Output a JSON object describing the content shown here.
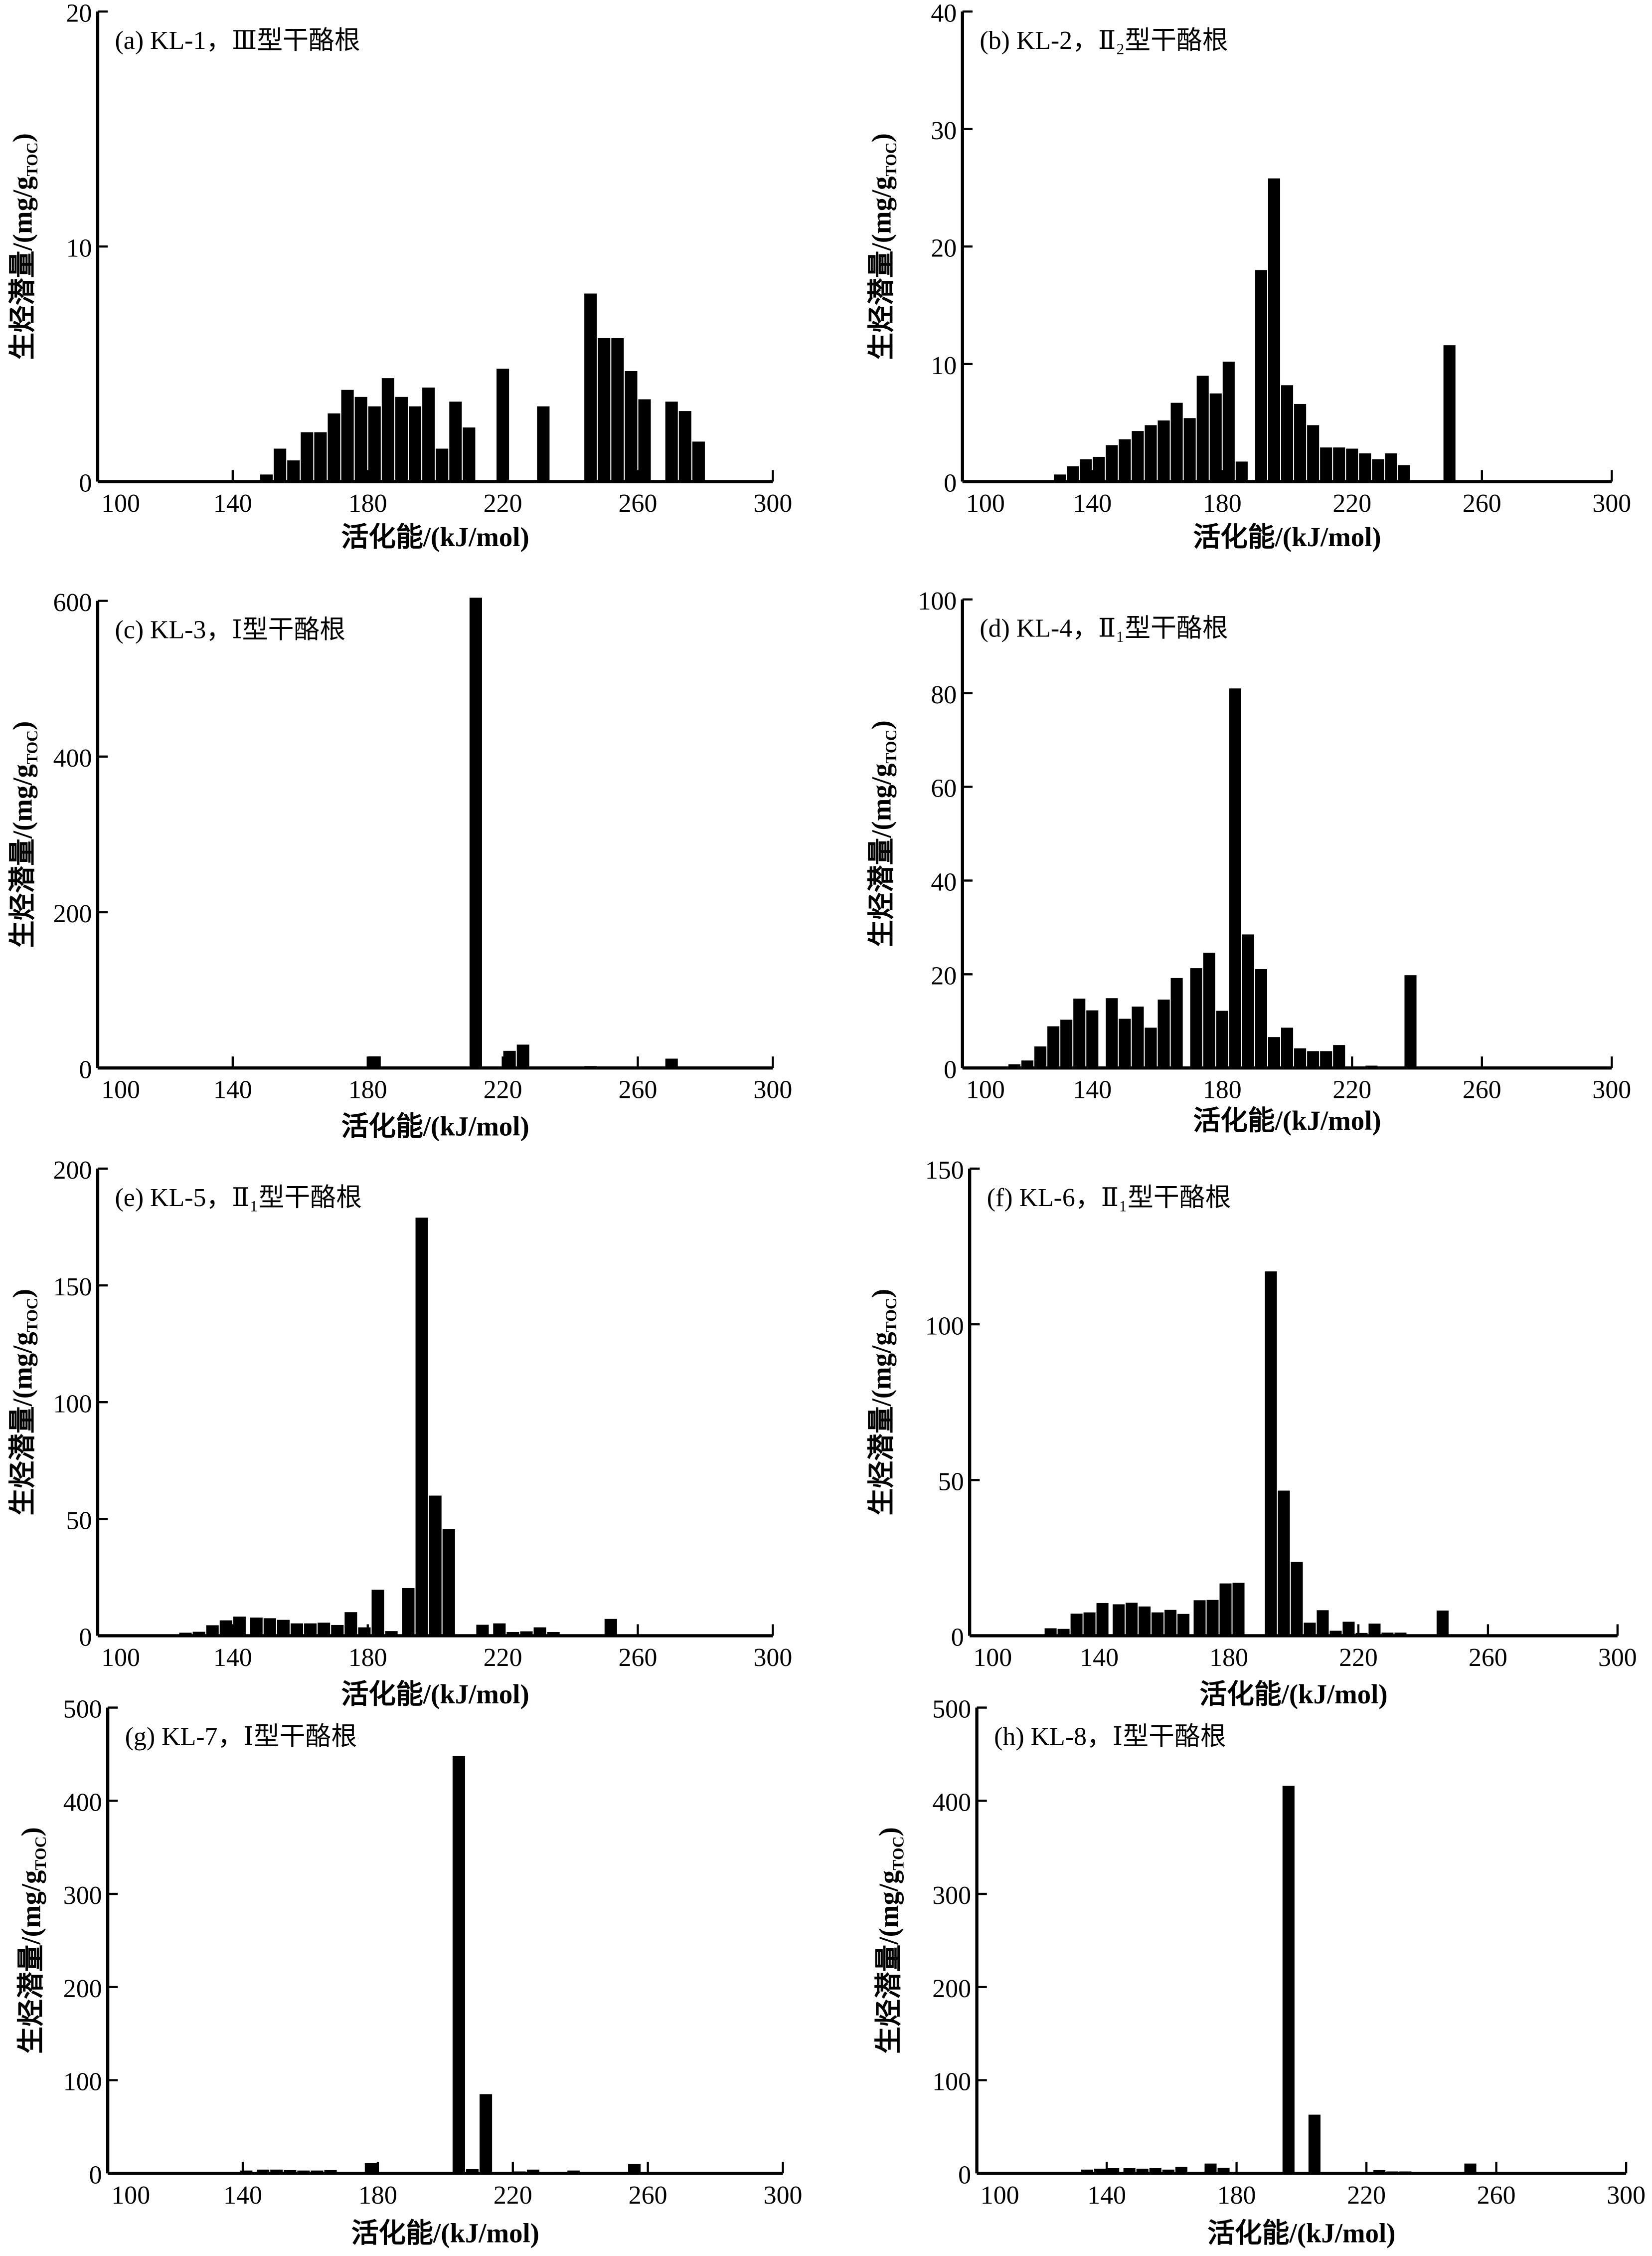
{
  "chart_data": [
    {
      "id": "a",
      "type": "bar",
      "title": "(a) KL-1，Ⅲ型干酪根",
      "xlabel": "活化能/(kJ/mol)",
      "ylabel": {
        "main": "生烃潜量/(mg/g",
        "sub": "TOC",
        "end": ")"
      },
      "xlim": [
        100,
        300
      ],
      "ylim": [
        0,
        20
      ],
      "xticks": [
        100,
        140,
        180,
        220,
        260,
        300
      ],
      "yticks": [
        0,
        10,
        20
      ],
      "x": [
        150,
        154,
        158,
        162,
        166,
        170,
        174,
        178,
        182,
        186,
        190,
        194,
        198,
        202,
        206,
        210,
        220,
        232,
        246,
        250,
        254,
        258,
        262,
        270,
        274,
        278
      ],
      "values": [
        0.3,
        1.4,
        0.9,
        2.1,
        2.1,
        2.9,
        3.9,
        3.6,
        3.2,
        4.4,
        3.6,
        3.2,
        4.0,
        1.4,
        3.4,
        2.3,
        4.8,
        3.2,
        8.0,
        6.1,
        6.1,
        4.7,
        3.5,
        3.4,
        3.0,
        1.7
      ]
    },
    {
      "id": "b",
      "type": "bar",
      "title": "(b) KL-2，Ⅱ₂型干酪根",
      "xlabel": "活化能/(kJ/mol)",
      "ylabel": {
        "main": "生烃潜量/(mg/g",
        "sub": "TOC",
        "end": ")"
      },
      "xlim": [
        100,
        300
      ],
      "ylim": [
        0,
        40
      ],
      "xticks": [
        100,
        140,
        180,
        220,
        260,
        300
      ],
      "yticks": [
        0,
        10,
        20,
        30,
        40
      ],
      "x": [
        130,
        134,
        138,
        142,
        146,
        150,
        154,
        158,
        162,
        166,
        170,
        174,
        178,
        182,
        186,
        192,
        196,
        200,
        204,
        208,
        212,
        216,
        220,
        224,
        228,
        232,
        236,
        250
      ],
      "values": [
        0.6,
        1.3,
        1.9,
        2.1,
        3.1,
        3.6,
        4.3,
        4.8,
        5.2,
        6.7,
        5.4,
        9.0,
        7.5,
        10.2,
        1.7,
        18.0,
        25.8,
        8.2,
        6.6,
        4.8,
        2.9,
        2.9,
        2.8,
        2.4,
        1.9,
        2.4,
        1.4,
        11.6
      ]
    },
    {
      "id": "c",
      "type": "bar",
      "title": "(c) KL-3，Ⅰ型干酪根",
      "xlabel": "活化能/(kJ/mol)",
      "ylabel": {
        "main": "生烃潜量/(mg/g",
        "sub": "TOC",
        "end": ")"
      },
      "xlim": [
        100,
        300
      ],
      "ylim": [
        0,
        600
      ],
      "xticks": [
        100,
        140,
        180,
        220,
        260,
        300
      ],
      "yticks": [
        0,
        200,
        400,
        600
      ],
      "x": [
        182,
        184,
        212,
        222,
        226,
        242,
        246,
        270
      ],
      "values": [
        15,
        2,
        604,
        22,
        30,
        1.5,
        2.5,
        12
      ]
    },
    {
      "id": "d",
      "type": "bar",
      "title": "(d) KL-4，Ⅱ₁型干酪根",
      "xlabel": "活化能/(kJ/mol)",
      "ylabel": {
        "main": "生烃潜量/(mg/g",
        "sub": "TOC",
        "end": ")"
      },
      "xlim": [
        100,
        300
      ],
      "ylim": [
        0,
        100
      ],
      "xticks": [
        100,
        140,
        180,
        220,
        260,
        300
      ],
      "yticks": [
        0,
        20,
        40,
        60,
        80,
        100
      ],
      "x": [
        116,
        120,
        124,
        128,
        132,
        136,
        140,
        146,
        150,
        154,
        158,
        162,
        166,
        172,
        176,
        180,
        184,
        188,
        192,
        196,
        200,
        204,
        208,
        212,
        216,
        226,
        238
      ],
      "values": [
        0.8,
        1.6,
        4.6,
        8.9,
        10.3,
        14.8,
        12.3,
        14.9,
        10.5,
        13.1,
        8.6,
        14.6,
        19.2,
        21.3,
        24.6,
        12.2,
        81,
        28.5,
        21.1,
        6.6,
        8.6,
        4.2,
        3.6,
        3.6,
        4.9,
        0.5,
        19.8
      ]
    },
    {
      "id": "e",
      "type": "bar",
      "title": "(e) KL-5，Ⅱ₁型干酪根",
      "xlabel": "活化能/(kJ/mol)",
      "ylabel": {
        "main": "生烃潜量/(mg/g",
        "sub": "TOC",
        "end": ")"
      },
      "xlim": [
        100,
        300
      ],
      "ylim": [
        0,
        200
      ],
      "xticks": [
        100,
        140,
        180,
        220,
        260,
        300
      ],
      "yticks": [
        0,
        50,
        100,
        150,
        200
      ],
      "x": [
        126,
        130,
        134,
        138,
        142,
        147,
        151,
        155,
        159,
        163,
        167,
        171,
        175,
        179,
        183,
        187,
        192,
        196,
        200,
        204,
        214,
        219,
        223,
        227,
        231,
        235,
        252
      ],
      "values": [
        1.3,
        1.7,
        4.5,
        6.6,
        8.2,
        7.8,
        7.5,
        6.8,
        5.3,
        5.3,
        5.6,
        4.6,
        10.1,
        3.6,
        19.7,
        2.0,
        20.4,
        179,
        60,
        45.7,
        4.7,
        5.3,
        1.6,
        1.9,
        3.6,
        1.6,
        7.2
      ]
    },
    {
      "id": "f",
      "type": "bar",
      "title": "(f) KL-6，Ⅱ₁型干酪根",
      "xlabel": "活化能/(kJ/mol)",
      "ylabel": {
        "main": "生烃潜量/(mg/g",
        "sub": "TOC",
        "end": ")"
      },
      "xlim": [
        100,
        300
      ],
      "ylim": [
        0,
        150
      ],
      "xticks": [
        100,
        140,
        180,
        220,
        260,
        300
      ],
      "yticks": [
        0,
        50,
        100,
        150
      ],
      "x": [
        125,
        129,
        133,
        137,
        141,
        146,
        150,
        154,
        158,
        162,
        166,
        171,
        175,
        179,
        183,
        193,
        197,
        201,
        205,
        209,
        213,
        217,
        221,
        225,
        229,
        233,
        246
      ],
      "values": [
        2.4,
        2.2,
        7.1,
        7.5,
        10.5,
        10.1,
        10.6,
        9.4,
        7.5,
        8.3,
        7.0,
        11.4,
        11.5,
        16.8,
        17.0,
        117,
        46.6,
        23.7,
        4.2,
        8.2,
        1.6,
        4.5,
        0.9,
        3.9,
        1.0,
        1.0,
        8.1
      ]
    },
    {
      "id": "g",
      "type": "bar",
      "title": "(g) KL-7，Ⅰ型干酪根",
      "xlabel": "活化能/(kJ/mol)",
      "ylabel": {
        "main": "生烃潜量/(mg/g",
        "sub": "TOC",
        "end": ")"
      },
      "xlim": [
        100,
        300
      ],
      "ylim": [
        0,
        500
      ],
      "xticks": [
        100,
        140,
        180,
        220,
        260,
        300
      ],
      "yticks": [
        0,
        100,
        200,
        300,
        400,
        500
      ],
      "x": [
        132,
        136,
        141,
        146,
        150,
        154,
        158,
        162,
        166,
        178,
        204,
        208,
        212,
        222,
        226,
        234,
        238,
        256
      ],
      "values": [
        1,
        1,
        3,
        4,
        4,
        3.5,
        3,
        3,
        3.5,
        11,
        448,
        4.5,
        85,
        2,
        4,
        1.5,
        3,
        10
      ]
    },
    {
      "id": "h",
      "type": "bar",
      "title": "(h) KL-8，Ⅰ型干酪根",
      "xlabel": "活化能/(kJ/mol)",
      "ylabel": {
        "main": "生烃潜量/(mg/g",
        "sub": "TOC",
        "end": ")"
      },
      "xlim": [
        100,
        300
      ],
      "ylim": [
        0,
        500
      ],
      "xticks": [
        100,
        140,
        180,
        220,
        260,
        300
      ],
      "yticks": [
        0,
        100,
        200,
        300,
        400,
        500
      ],
      "x": [
        126,
        130,
        134,
        138,
        142,
        147,
        151,
        155,
        159,
        163,
        172,
        176,
        196,
        204,
        224,
        228,
        232,
        252
      ],
      "values": [
        1,
        1,
        4,
        5,
        5.5,
        5.5,
        5,
        5.5,
        4,
        7,
        10.5,
        6,
        416,
        63,
        3.5,
        2,
        2,
        10.5
      ]
    }
  ]
}
